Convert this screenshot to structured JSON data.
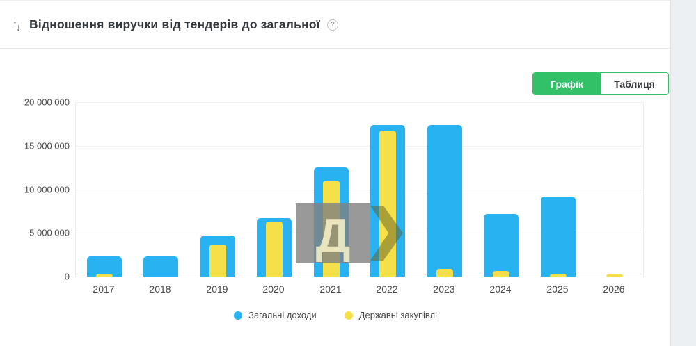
{
  "header": {
    "sort_icon_up": "↑",
    "sort_icon_down": "↓",
    "title": "Відношення виручки від тендерів до загальної",
    "help_icon": "?"
  },
  "toolbar": {
    "chart_tab_label": "Графік",
    "table_tab_label": "Таблиця",
    "active_tab": "Графік"
  },
  "watermark": {
    "letter": "Д"
  },
  "colors": {
    "series_blue": "#29b2f2",
    "series_yellow": "#f6e04a",
    "accent_green": "#33c168"
  },
  "chart_data": {
    "type": "bar",
    "title": "Відношення виручки від тендерів до загальної",
    "categories": [
      "2017",
      "2018",
      "2019",
      "2020",
      "2021",
      "2022",
      "2023",
      "2024",
      "2025",
      "2026"
    ],
    "series": [
      {
        "name": "Загальні доходи",
        "color": "#29b2f2",
        "values": [
          2300000,
          2300000,
          4700000,
          6700000,
          12500000,
          17400000,
          17400000,
          7200000,
          9200000,
          0
        ]
      },
      {
        "name": "Державні закупівлі",
        "color": "#f6e04a",
        "values": [
          350000,
          0,
          3700000,
          6300000,
          11000000,
          16700000,
          900000,
          600000,
          350000,
          300000
        ]
      }
    ],
    "ylim": [
      0,
      20000000
    ],
    "ytick_labels_top_to_bottom": [
      "20 000 000",
      "15 000 000",
      "10 000 000",
      "5 000 000",
      "0"
    ],
    "grid": true,
    "legend_position": "bottom",
    "bar_layout": "overlaid"
  }
}
